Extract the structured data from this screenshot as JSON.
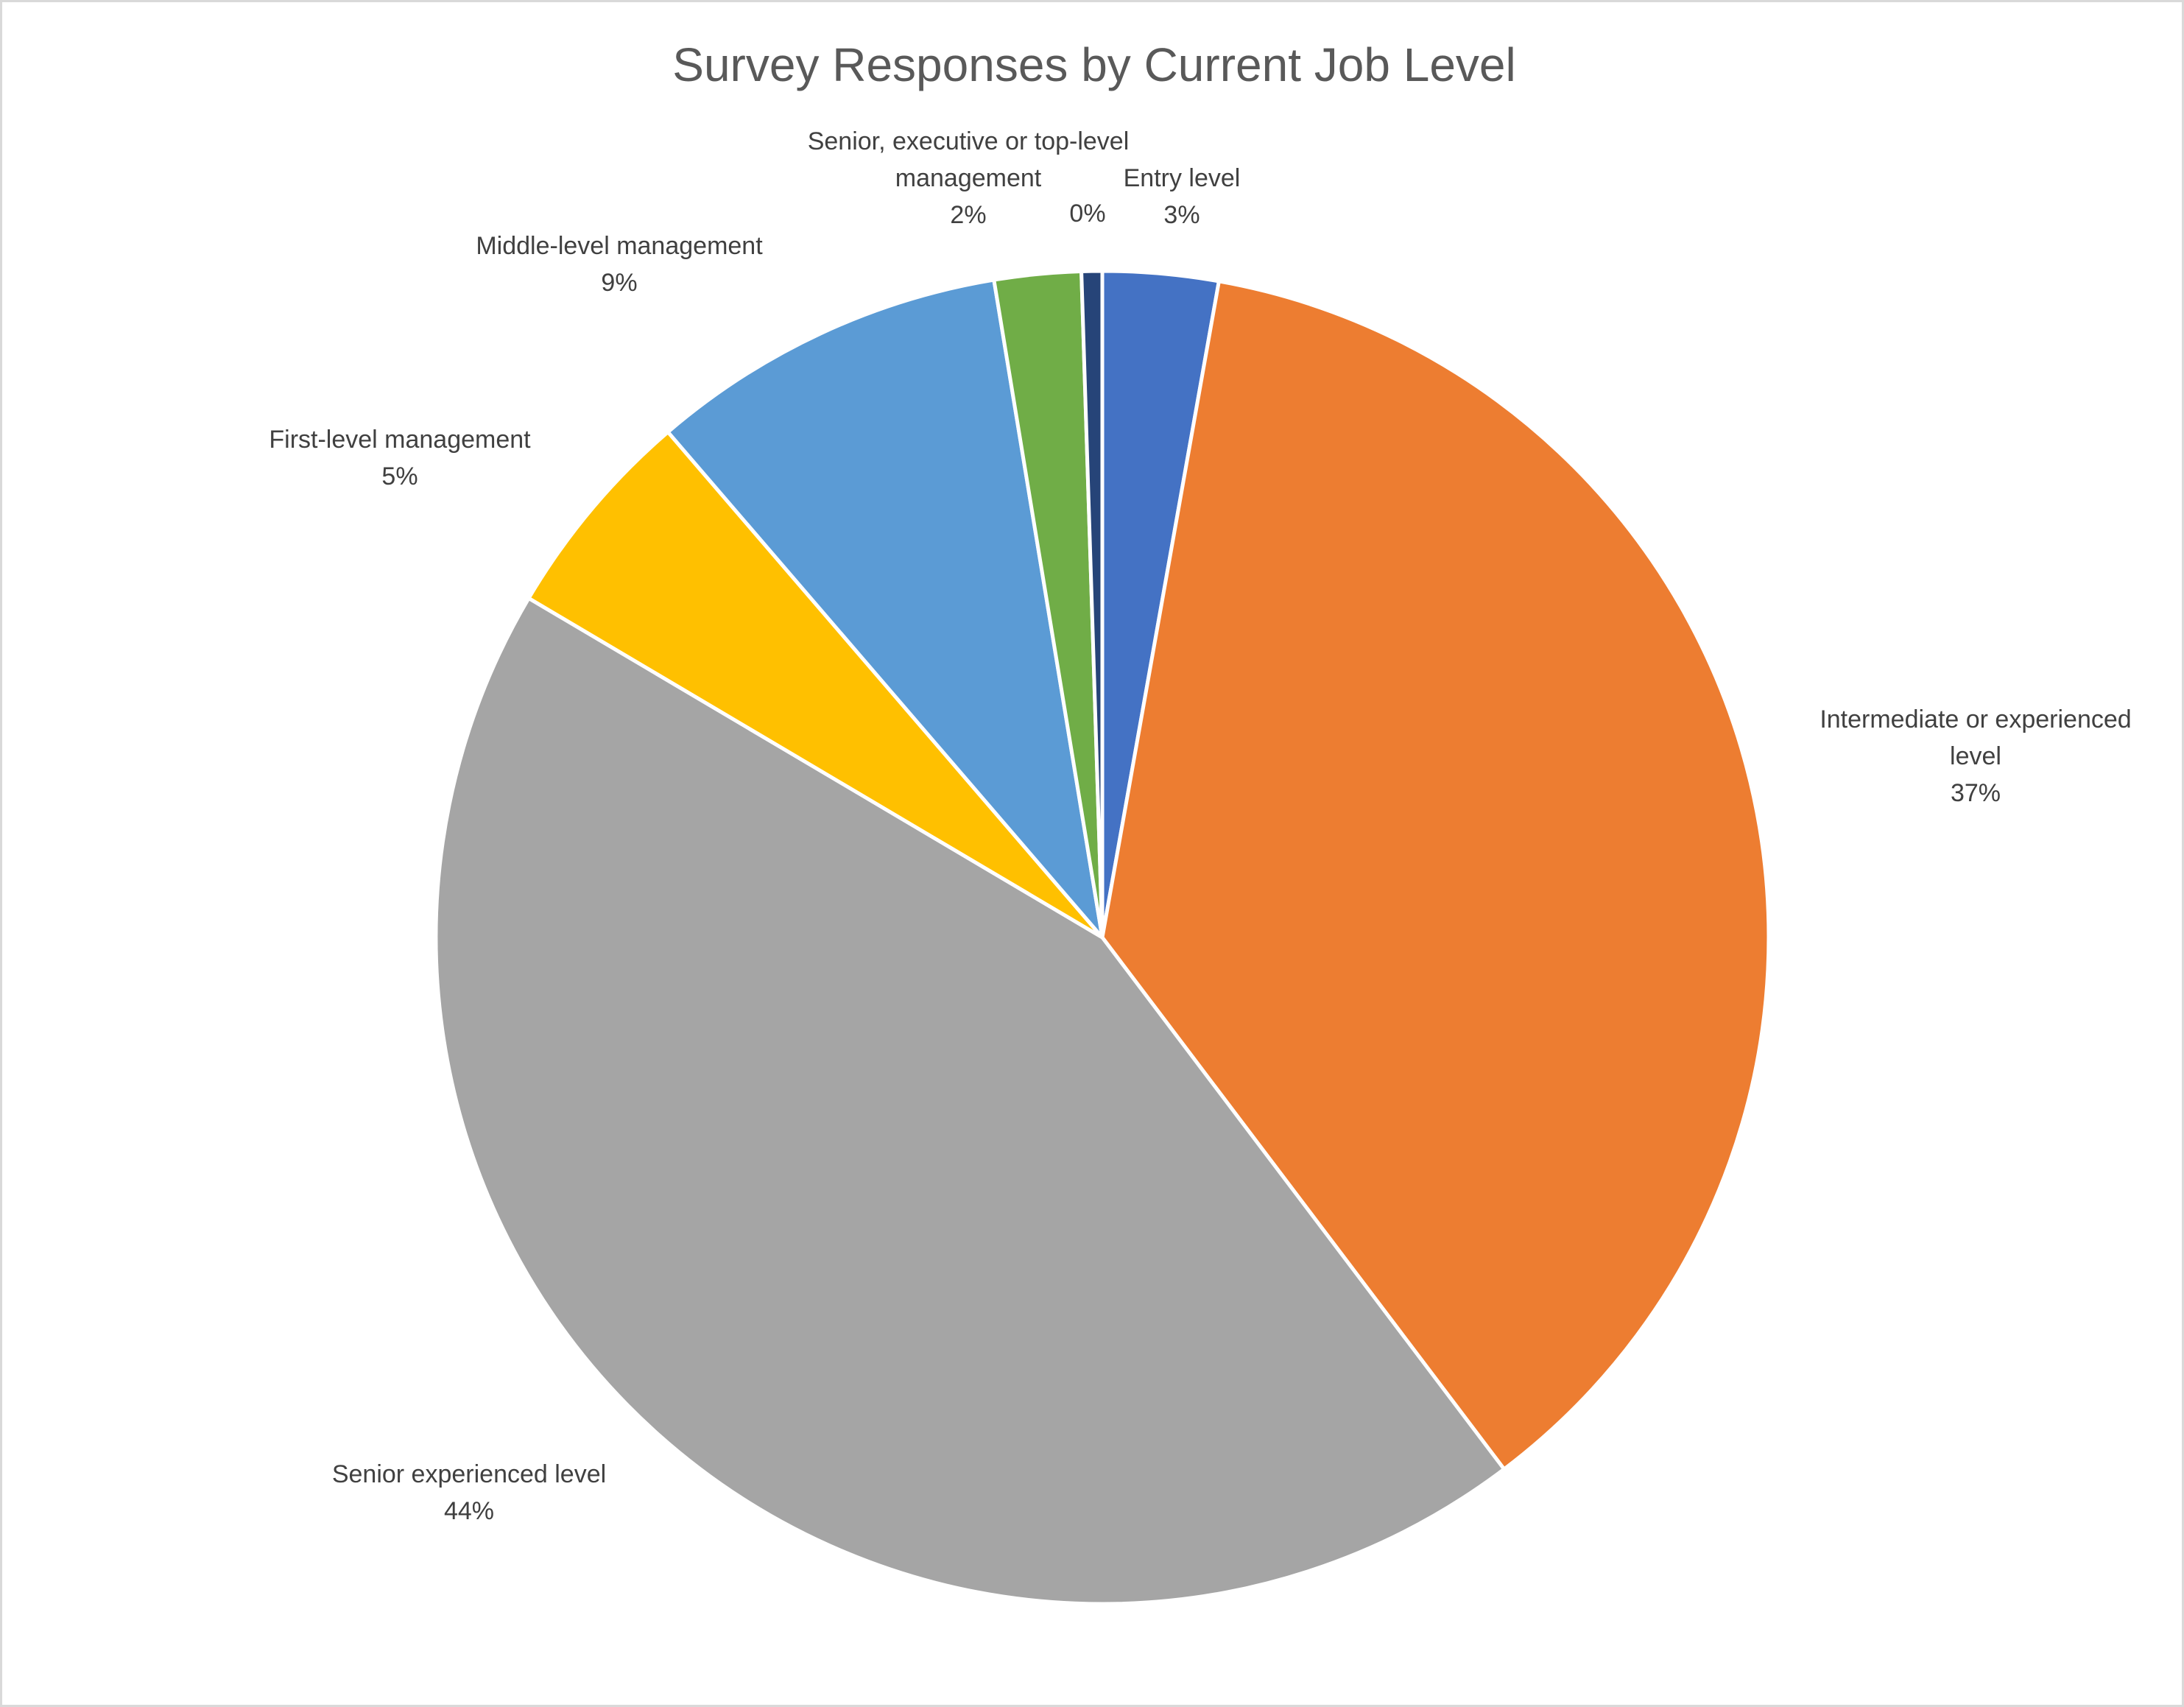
{
  "chart_data": {
    "type": "pie",
    "title": "Survey Responses by Current Job Level",
    "slices": [
      {
        "label_lines": [
          "Entry level"
        ],
        "value_label": "3%",
        "value": 2.8,
        "color": "#4472C4"
      },
      {
        "label_lines": [
          "Intermediate or experienced",
          "level"
        ],
        "value_label": "37%",
        "value": 36.9,
        "color": "#ED7D31"
      },
      {
        "label_lines": [
          "Senior experienced level"
        ],
        "value_label": "44%",
        "value": 43.8,
        "color": "#A5A5A5"
      },
      {
        "label_lines": [
          "First-level management"
        ],
        "value_label": "5%",
        "value": 5.2,
        "color": "#FFC000"
      },
      {
        "label_lines": [
          "Middle-level management"
        ],
        "value_label": "9%",
        "value": 8.7,
        "color": "#5B9BD5"
      },
      {
        "label_lines": [
          "Senior, executive or top-level",
          "management"
        ],
        "value_label": "2%",
        "value": 2.1,
        "color": "#70AD47"
      },
      {
        "label_lines": [],
        "value_label": "0%",
        "value": 0.5,
        "color": "#264478"
      }
    ],
    "legend": "none",
    "start_angle_deg": 0,
    "direction": "clockwise"
  }
}
